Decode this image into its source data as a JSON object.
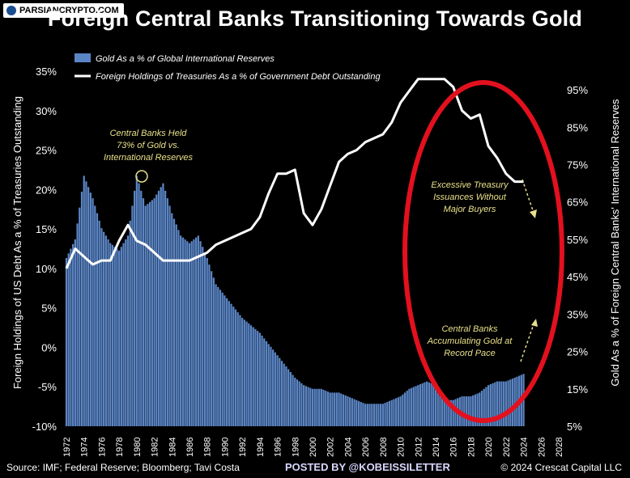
{
  "watermark": "PARSIANCRYPTO.COM",
  "title": "Foreign Central Banks Transitioning Towards Gold",
  "footer": {
    "source": "Source: IMF; Federal Reserve; Bloomberg; Tavi Costa",
    "posted_by": "POSTED BY @KOBEISSILETTER",
    "copyright": "© 2024 Crescat Capital LLC"
  },
  "colors": {
    "bars": "#5b86c6",
    "line": "#ffffff",
    "ellipse": "#e3101e",
    "annotation": "#e8e08a",
    "background": "#000000"
  },
  "chart_data": {
    "type": "bar+line",
    "legend": [
      {
        "label": "Gold As a % of Global International Reserves",
        "kind": "bar",
        "axis": "right"
      },
      {
        "label": "Foreign Holdings of Treasuries As a % of Government Debt Outstanding",
        "kind": "line",
        "axis": "left"
      }
    ],
    "left_axis": {
      "label": "Foreign Holdings of US Debt As a % of Treasuries Outstanding",
      "min": -10,
      "max": 35,
      "ticks": [
        "-10%",
        "-5%",
        "0%",
        "5%",
        "10%",
        "15%",
        "20%",
        "25%",
        "30%",
        "35%"
      ]
    },
    "right_axis": {
      "label": "Gold As a % of Foreign Central Banks' International Reserves",
      "min": 5,
      "max": 100,
      "ticks": [
        "5%",
        "15%",
        "25%",
        "35%",
        "45%",
        "55%",
        "65%",
        "75%",
        "85%",
        "95%"
      ]
    },
    "x_axis": {
      "min": 1972,
      "max": 2028,
      "ticks": [
        "1972",
        "1974",
        "1976",
        "1978",
        "1980",
        "1982",
        "1984",
        "1986",
        "1988",
        "1990",
        "1992",
        "1994",
        "1996",
        "1998",
        "2000",
        "2002",
        "2004",
        "2006",
        "2008",
        "2010",
        "2012",
        "2014",
        "2016",
        "2018",
        "2020",
        "2022",
        "2024",
        "2026",
        "2028"
      ]
    },
    "gold_series": {
      "name": "Gold As a % of Global International Reserves",
      "x": [
        1972,
        1973,
        1974,
        1975,
        1976,
        1977,
        1978,
        1979,
        1980,
        1981,
        1982,
        1983,
        1984,
        1985,
        1986,
        1987,
        1988,
        1989,
        1990,
        1991,
        1992,
        1993,
        1994,
        1995,
        1996,
        1997,
        1998,
        1999,
        2000,
        2001,
        2002,
        2003,
        2004,
        2005,
        2006,
        2007,
        2008,
        2009,
        2010,
        2011,
        2012,
        2013,
        2014,
        2015,
        2016,
        2017,
        2018,
        2019,
        2020,
        2021,
        2022,
        2023,
        2024
      ],
      "y": [
        50,
        55,
        72,
        66,
        58,
        54,
        52,
        56,
        72,
        64,
        66,
        70,
        62,
        56,
        54,
        56,
        50,
        43,
        40,
        37,
        34,
        32,
        30,
        27,
        24,
        21,
        18,
        16,
        15,
        15,
        14,
        14,
        13,
        12,
        11,
        11,
        11,
        12,
        13,
        15,
        16,
        17,
        16,
        12,
        12,
        13,
        13,
        14,
        16,
        17,
        17,
        18,
        19
      ]
    },
    "treasury_series": {
      "name": "Foreign Holdings of Treasuries As a % of Government Debt Outstanding",
      "x": [
        1972,
        1973,
        1974,
        1975,
        1976,
        1977,
        1978,
        1979,
        1980,
        1981,
        1982,
        1983,
        1984,
        1985,
        1986,
        1987,
        1988,
        1989,
        1990,
        1991,
        1992,
        1993,
        1994,
        1995,
        1996,
        1997,
        1998,
        1999,
        2000,
        2001,
        2002,
        2003,
        2004,
        2005,
        2006,
        2007,
        2008,
        2009,
        2010,
        2011,
        2012,
        2013,
        2014,
        2015,
        2016,
        2017,
        2018,
        2019,
        2020,
        2021,
        2022,
        2023,
        2024
      ],
      "y": [
        10,
        12.5,
        11.5,
        10.5,
        11,
        11,
        13.5,
        15.5,
        13.5,
        13,
        12,
        11,
        11,
        11,
        11,
        11.5,
        12,
        13,
        13.5,
        14,
        14.5,
        15,
        16.5,
        19.5,
        22,
        22,
        22.5,
        17,
        15.5,
        17.5,
        20.5,
        23.5,
        24.5,
        25,
        26,
        26.5,
        27,
        28.5,
        31,
        32.5,
        34,
        34,
        34,
        34,
        33,
        30,
        29,
        29.5,
        25.5,
        24,
        22,
        21,
        21
      ]
    },
    "annotations": [
      "Central Banks Held 73% of Gold vs. International Reserves",
      "Excessive Treasury Issuances Without Major Buyers",
      "Central Banks Accumulating Gold at Record Pace"
    ]
  }
}
